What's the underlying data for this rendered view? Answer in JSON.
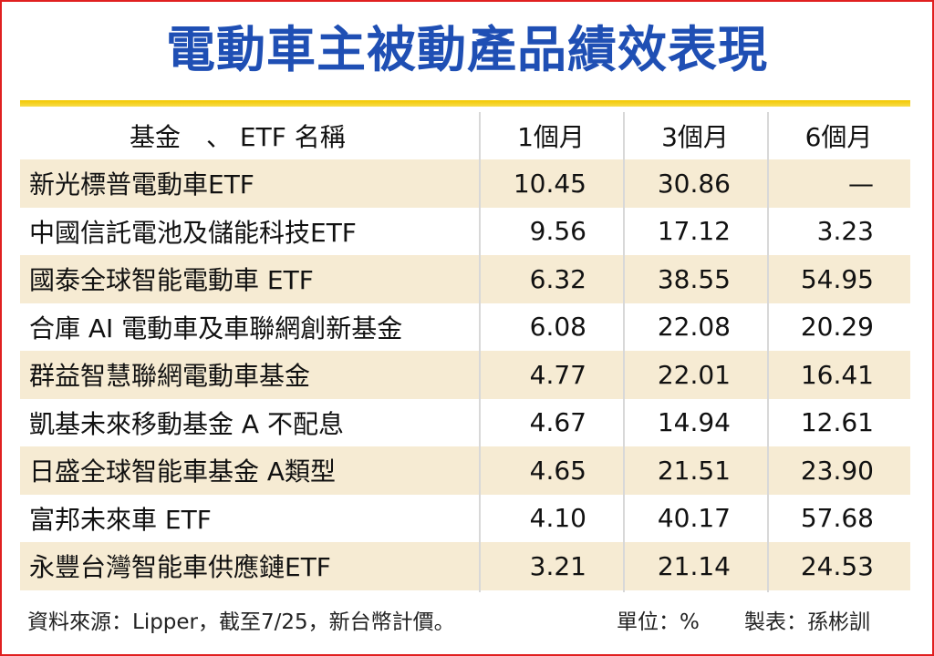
{
  "title": "電動車主被動產品績效表現",
  "headers": {
    "name": "基金　、 ETF 名稱",
    "m1": "1個月",
    "m3": "3個月",
    "m6": "6個月"
  },
  "rows": [
    {
      "name": "新光標普電動車ETF",
      "m1": "10.45",
      "m3": "30.86",
      "m6": "—"
    },
    {
      "name": "中國信託電池及儲能科技ETF",
      "m1": "9.56",
      "m3": "17.12",
      "m6": "3.23"
    },
    {
      "name": "國泰全球智能電動車 ETF",
      "m1": "6.32",
      "m3": "38.55",
      "m6": "54.95"
    },
    {
      "name": "合庫 AI 電動車及車聯網創新基金",
      "m1": "6.08",
      "m3": "22.08",
      "m6": "20.29"
    },
    {
      "name": "群益智慧聯網電動車基金",
      "m1": "4.77",
      "m3": "22.01",
      "m6": "16.41"
    },
    {
      "name": "凱基未來移動基金 A 不配息",
      "m1": "4.67",
      "m3": "14.94",
      "m6": "12.61"
    },
    {
      "name": "日盛全球智能車基金 A類型",
      "m1": "4.65",
      "m3": "21.51",
      "m6": "23.90"
    },
    {
      "name": "富邦未來車 ETF",
      "m1": "4.10",
      "m3": "40.17",
      "m6": "57.68"
    },
    {
      "name": "永豐台灣智能車供應鏈ETF",
      "m1": "3.21",
      "m3": "21.14",
      "m6": "24.53"
    }
  ],
  "footer": {
    "source": "資料來源：Lipper，截至7/25，新台幣計價。",
    "unit": "單位：%",
    "maker": "製表：孫彬訓"
  },
  "colors": {
    "title": "#1f4fb4",
    "accent_line": "#f3c800",
    "row_shade": "#f6ebd3",
    "border": "#e02020"
  }
}
